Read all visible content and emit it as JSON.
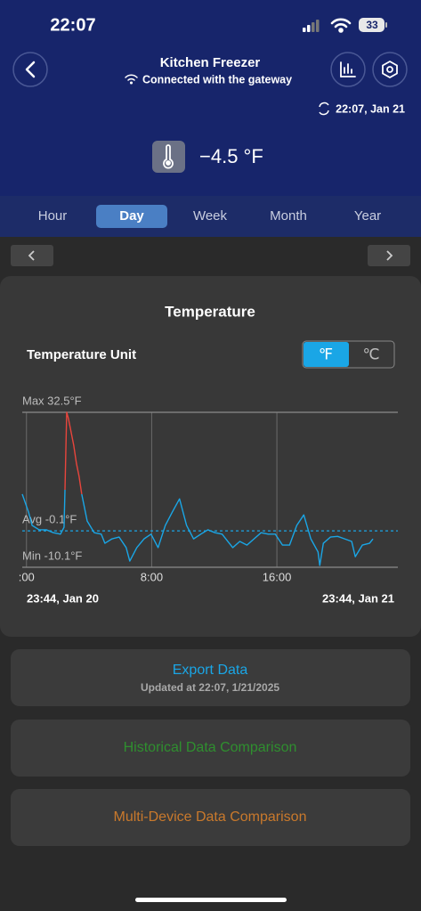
{
  "status_bar": {
    "time": "22:07",
    "battery": "33"
  },
  "header": {
    "title": "Kitchen Freezer",
    "subtitle": "Connected with the gateway",
    "updated": "22:07,  Jan 21"
  },
  "current": {
    "reading": "−4.5 °F"
  },
  "tabs": {
    "items": [
      "Hour",
      "Day",
      "Week",
      "Month",
      "Year"
    ],
    "selected": 1
  },
  "card": {
    "title": "Temperature",
    "unit_label": "Temperature Unit",
    "units": [
      "℉",
      "℃"
    ],
    "selected_unit": 0
  },
  "chart_data": {
    "type": "line",
    "x": [
      -0.27,
      0.13,
      0.36,
      0.81,
      1.27,
      1.72,
      2.17,
      2.4,
      2.46,
      2.57,
      2.68,
      2.85,
      3.02,
      3.19,
      3.36,
      3.53,
      3.88,
      4.33,
      4.78,
      5.01,
      5.46,
      5.92,
      6.37,
      6.6,
      7.05,
      7.51,
      7.96,
      8.41,
      8.87,
      9.32,
      9.78,
      10.23,
      10.68,
      11.14,
      11.59,
      12.05,
      12.5,
      13.18,
      13.63,
      14.09,
      14.54,
      14.99,
      15.45,
      15.9,
      16.36,
      16.81,
      17.27,
      17.72,
      18.17,
      18.63,
      18.74,
      18.97,
      19.42,
      19.88,
      20.33,
      20.78,
      21.01,
      21.46,
      21.92,
      22.14
    ],
    "series": [
      {
        "color": "#1aa6e6",
        "values": [
          10.0,
          5.1,
          1.4,
          0.2,
          0.2,
          -0.6,
          -1.0,
          0.9,
          11.2,
          null,
          null,
          null,
          null,
          null,
          null,
          10.0,
          2.6,
          -0.6,
          -1.0,
          -3.5,
          -2.3,
          -1.8,
          -4.7,
          -8.4,
          -4.7,
          -2.3,
          -1.0,
          -4.7,
          1.4,
          5.1,
          8.7,
          1.4,
          -2.3,
          -1.0,
          0.2,
          -0.6,
          -1.0,
          -4.7,
          -3.0,
          -4.0,
          -2.3,
          -0.6,
          -1.0,
          -1.0,
          -4.0,
          -4.0,
          1.4,
          4.3,
          -2.3,
          -5.9,
          -9.6,
          -3.5,
          -1.8,
          -1.6,
          -2.3,
          -3.0,
          -7.2,
          -4.0,
          -3.5,
          -2.3
        ]
      },
      {
        "color": "#e8453c",
        "values": [
          null,
          null,
          null,
          null,
          null,
          null,
          null,
          null,
          11.2,
          32.5,
          30.8,
          27.1,
          23.4,
          18.5,
          14.9,
          10.0,
          null,
          null,
          null,
          null,
          null,
          null,
          null,
          null,
          null,
          null,
          null,
          null,
          null,
          null,
          null,
          null,
          null,
          null,
          null,
          null,
          null,
          null,
          null,
          null,
          null,
          null,
          null,
          null,
          null,
          null,
          null,
          null,
          null,
          null,
          null,
          null,
          null,
          null,
          null,
          null,
          null,
          null,
          null,
          null
        ]
      }
    ],
    "xlim": [
      -0.27,
      23.73
    ],
    "xticks": [
      {
        "value": 0,
        "label": ":00"
      },
      {
        "value": 8,
        "label": "8:00"
      },
      {
        "value": 16,
        "label": "16:00"
      }
    ],
    "ylim": [
      -10.1,
      32.5
    ],
    "grid": true,
    "reference_lines": [
      {
        "value": 32.5,
        "label": "Max 32.5°F",
        "color": "#8a8a8a",
        "dashed": false
      },
      {
        "value": -0.1,
        "label": "Avg -0.1°F",
        "color": "#1aa6e6",
        "dashed": true
      },
      {
        "value": -10.1,
        "label": "Min -10.1°F",
        "color": "#8a8a8a",
        "dashed": false
      }
    ],
    "start_label": "23:44,  Jan 20",
    "end_label": "23:44,  Jan 21"
  },
  "buttons": [
    {
      "label": "Export Data",
      "sublabel": "Updated at 22:07,  1/21/2025",
      "color": "#1aa6e6"
    },
    {
      "label": "Historical Data Comparison",
      "color": "#2f8f2f"
    },
    {
      "label": "Multi-Device Data Comparison",
      "color": "#c9792c"
    }
  ]
}
